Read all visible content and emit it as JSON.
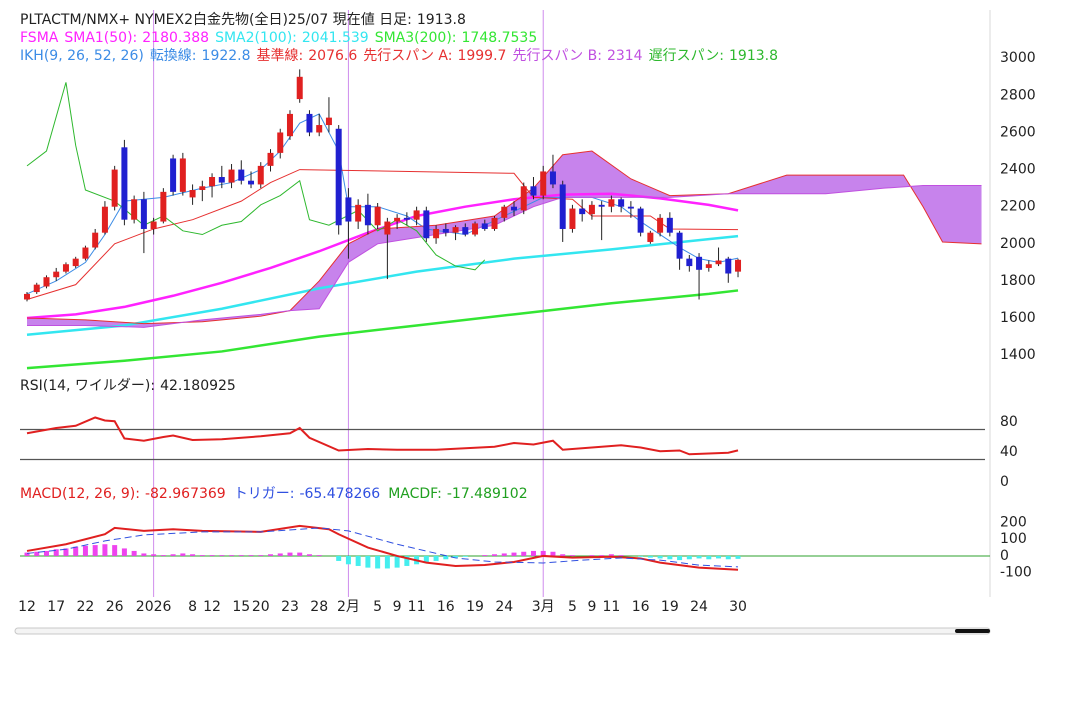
{
  "chart_data": {
    "type": "candlestick",
    "title": "PLTACTM/NMX+ NYMEX2白金先物(全日)25/07 現在値 日足:",
    "categories": [
      "12",
      null,
      null,
      "17",
      null,
      null,
      "22",
      null,
      null,
      "26",
      null,
      null,
      null,
      "2026",
      null,
      null,
      null,
      "8",
      null,
      "12",
      null,
      null,
      "15",
      null,
      "20",
      null,
      null,
      "23",
      null,
      null,
      "28",
      null,
      null,
      "2月",
      null,
      null,
      "5",
      null,
      "9",
      null,
      "11",
      null,
      null,
      "16",
      null,
      null,
      "19",
      null,
      null,
      "24",
      null,
      null,
      null,
      "3月",
      null,
      null,
      "5",
      null,
      "9",
      null,
      "11",
      null,
      null,
      "16",
      null,
      null,
      "19",
      null,
      null,
      "24",
      null,
      null,
      null,
      "30",
      null,
      null,
      null,
      null,
      null,
      null,
      null,
      null,
      null,
      null,
      null,
      null,
      null,
      null,
      null,
      null,
      null,
      null,
      null,
      null,
      null,
      null,
      null,
      null,
      null
    ],
    "period_starts": [
      13,
      33,
      53
    ],
    "period_color": "#b040e0",
    "ylim": [
      1320,
      3260
    ],
    "yticks": [
      1400,
      1600,
      1800,
      2000,
      2200,
      2400,
      2600,
      2800,
      3000
    ],
    "up_color": "#e02020",
    "down_color": "#2020d0",
    "candles": {
      "open": [
        1700,
        1740,
        1770,
        1820,
        1850,
        1880,
        1920,
        1980,
        2060,
        2200,
        2520,
        2130,
        2240,
        2080,
        2120,
        2460,
        2280,
        2250,
        2290,
        2310,
        2360,
        2330,
        2400,
        2340,
        2320,
        2420,
        2490,
        2580,
        2780,
        2700,
        2600,
        2640,
        2620,
        2250,
        2120,
        2210,
        2100,
        2050,
        2120,
        2140,
        2130,
        2180,
        2030,
        2080,
        2060,
        2090,
        2050,
        2110,
        2080,
        2140,
        2200,
        2180,
        2310,
        2260,
        2390,
        2320,
        2080,
        2190,
        2160,
        2210,
        2200,
        2240,
        2200,
        2190,
        2010,
        2060,
        2140,
        2060,
        1920,
        1930,
        1870,
        1890,
        1920,
        1850
      ],
      "high": [
        1740,
        1790,
        1830,
        1870,
        1900,
        1930,
        1990,
        2080,
        2230,
        2420,
        2560,
        2260,
        2280,
        2140,
        2300,
        2480,
        2490,
        2320,
        2340,
        2380,
        2420,
        2430,
        2450,
        2390,
        2440,
        2510,
        2620,
        2720,
        2940,
        2720,
        2700,
        2790,
        2640,
        2300,
        2240,
        2270,
        2220,
        2140,
        2160,
        2170,
        2200,
        2200,
        2100,
        2110,
        2100,
        2110,
        2120,
        2130,
        2150,
        2210,
        2230,
        2330,
        2360,
        2420,
        2480,
        2340,
        2210,
        2240,
        2230,
        2230,
        2260,
        2250,
        2230,
        2200,
        2070,
        2160,
        2170,
        2070,
        1940,
        1950,
        1910,
        1980,
        1930,
        1920
      ],
      "low": [
        1690,
        1730,
        1760,
        1800,
        1840,
        1870,
        1910,
        1970,
        2050,
        2180,
        2100,
        2110,
        1950,
        2050,
        2110,
        2260,
        2260,
        2210,
        2230,
        2250,
        2300,
        2300,
        2320,
        2300,
        2300,
        2390,
        2460,
        2560,
        2760,
        2580,
        2580,
        2600,
        2050,
        1920,
        2080,
        2050,
        2080,
        1810,
        2080,
        2100,
        2100,
        2010,
        2000,
        2040,
        2020,
        2040,
        2040,
        2070,
        2070,
        2120,
        2150,
        2160,
        2240,
        2240,
        2300,
        2010,
        2060,
        2120,
        2130,
        2020,
        2170,
        2170,
        2140,
        2040,
        2000,
        2040,
        2040,
        1860,
        1850,
        1700,
        1850,
        1880,
        1790,
        1820
      ],
      "close": [
        1730,
        1780,
        1820,
        1850,
        1890,
        1920,
        1980,
        2060,
        2200,
        2400,
        2130,
        2240,
        2080,
        2120,
        2280,
        2280,
        2460,
        2290,
        2310,
        2360,
        2330,
        2400,
        2340,
        2320,
        2420,
        2490,
        2600,
        2700,
        2900,
        2600,
        2640,
        2680,
        2100,
        2120,
        2210,
        2100,
        2200,
        2120,
        2140,
        2130,
        2180,
        2030,
        2080,
        2060,
        2090,
        2050,
        2110,
        2080,
        2140,
        2200,
        2180,
        2310,
        2260,
        2390,
        2320,
        2080,
        2190,
        2160,
        2210,
        2200,
        2240,
        2200,
        2190,
        2060,
        2060,
        2140,
        2060,
        1920,
        1880,
        1860,
        1890,
        1910,
        1840,
        1913.8
      ]
    },
    "overlays": [
      {
        "label": "FSMA",
        "color": "#ff22ff",
        "series": [
          {
            "name": "SMA1(50):",
            "color": "#ff22ff",
            "width": 2.5,
            "x": [
              0,
              5,
              10,
              15,
              20,
              25,
              30,
              35,
              40,
              45,
              50,
              55,
              60,
              65,
              70,
              73
            ],
            "values": [
              1600,
              1620,
              1660,
              1720,
              1790,
              1870,
              1960,
              2060,
              2150,
              2200,
              2240,
              2265,
              2270,
              2245,
              2210,
              2180.388
            ]
          },
          {
            "name": "SMA2(100):",
            "color": "#33e6f0",
            "width": 2.5,
            "x": [
              0,
              10,
              20,
              30,
              40,
              50,
              60,
              70,
              73
            ],
            "values": [
              1510,
              1560,
              1650,
              1760,
              1850,
              1920,
              1970,
              2025,
              2041.539
            ]
          },
          {
            "name": "SMA3(200):",
            "color": "#33e633",
            "width": 2.5,
            "x": [
              0,
              10,
              20,
              30,
              40,
              50,
              60,
              70,
              73
            ],
            "values": [
              1330,
              1370,
              1420,
              1500,
              1560,
              1620,
              1680,
              1730,
              1748.7535
            ]
          }
        ]
      },
      {
        "label": "IKH(9, 26, 52, 26)",
        "color": "#3c8ce6",
        "cloud": {
          "fill": "#b45ae6",
          "opacity": 0.75
        },
        "series": [
          {
            "name": "転換線:",
            "color": "#3c8ce6",
            "width": 1,
            "x": [
              0,
              3,
              6,
              8,
              10,
              14,
              18,
              21,
              24,
              26,
              28,
              30,
              32,
              33,
              36,
              39,
              41,
              45,
              49,
              51,
              53,
              58,
              61,
              63,
              65,
              67,
              69,
              71,
              73
            ],
            "values": [
              1730,
              1800,
              1900,
              2050,
              2230,
              2250,
              2300,
              2330,
              2400,
              2500,
              2650,
              2700,
              2500,
              2200,
              2200,
              2150,
              2080,
              2050,
              2150,
              2200,
              2250,
              2250,
              2200,
              2120,
              2050,
              1980,
              1920,
              1900,
              1922.8
            ]
          },
          {
            "name": "基準線:",
            "color": "#e63030",
            "width": 1,
            "x": [
              0,
              5,
              9,
              13,
              17,
              22,
              25,
              28,
              50,
              52,
              56,
              58,
              64,
              66,
              73
            ],
            "values": [
              1700,
              1780,
              2000,
              2080,
              2130,
              2230,
              2330,
              2400,
              2380,
              2250,
              2240,
              2150,
              2150,
              2080,
              2076.6
            ]
          },
          {
            "name": "先行スパン A:",
            "color": "#e63030",
            "width": 1,
            "cloud_edge": true,
            "x": [
              0,
              6,
              12,
              18,
              24,
              27,
              30,
              33,
              36,
              42,
              48,
              52,
              55,
              58,
              62,
              66,
              72,
              78,
              90,
              92,
              94,
              98
            ],
            "values": [
              1600,
              1590,
              1570,
              1580,
              1610,
              1640,
              1800,
              2000,
              2080,
              2100,
              2150,
              2300,
              2480,
              2500,
              2350,
              2260,
              2270,
              2370,
              2370,
              2200,
              2010,
              1999.7
            ]
          },
          {
            "name": "先行スパン B:",
            "color": "#c050e0",
            "width": 1,
            "cloud_edge": true,
            "x": [
              0,
              6,
              12,
              18,
              24,
              27,
              30,
              33,
              36,
              42,
              48,
              52,
              55,
              58,
              62,
              66,
              72,
              78,
              82,
              88,
              92,
              98
            ],
            "values": [
              1560,
              1560,
              1550,
              1590,
              1620,
              1640,
              1650,
              1900,
              2000,
              2050,
              2100,
              2200,
              2250,
              2250,
              2250,
              2250,
              2270,
              2270,
              2270,
              2300,
              2314,
              2314
            ]
          },
          {
            "name": "遅行スパン:",
            "color": "#2eb82e",
            "width": 1,
            "x": [
              0,
              2,
              4,
              5,
              6,
              9,
              12,
              14,
              16,
              18,
              20,
              22,
              24,
              26,
              28,
              29,
              31,
              34,
              36,
              38,
              40,
              42,
              44,
              46,
              47
            ],
            "values": [
              2420,
              2500,
              2870,
              2530,
              2290,
              2230,
              2100,
              2150,
              2070,
              2050,
              2100,
              2120,
              2210,
              2260,
              2340,
              2130,
              2100,
              2180,
              2070,
              2130,
              2070,
              1940,
              1880,
              1860,
              1913.8
            ]
          }
        ]
      }
    ],
    "panels": [
      {
        "type": "line",
        "ylim": [
          0,
          136
        ],
        "yticks": [
          0,
          40,
          80
        ],
        "levels": [
          70,
          30
        ],
        "level_color": "#555",
        "series": [
          {
            "name": "RSI(14, ワイルダー):",
            "color": "#e02020",
            "label_color": "#222",
            "width": 2,
            "x": [
              0,
              3,
              5,
              7,
              8,
              9,
              10,
              12,
              14,
              15,
              17,
              20,
              24,
              27,
              28,
              29,
              32,
              35,
              38,
              42,
              45,
              48,
              50,
              52,
              54,
              55,
              58,
              61,
              63,
              65,
              67,
              68,
              70,
              72,
              73
            ],
            "values": [
              65,
              72,
              75,
              86,
              82,
              81,
              58,
              55,
              60,
              62,
              56,
              57,
              61,
              65,
              72,
              59,
              42,
              44,
              43,
              43,
              45,
              47,
              52,
              50,
              55,
              43,
              46,
              49,
              46,
              41,
              42,
              37,
              38,
              39,
              42.180925
            ]
          }
        ]
      },
      {
        "type": "macd",
        "ylim": [
          -234,
          407
        ],
        "yticks": [
          -100,
          0,
          100,
          200
        ],
        "zero_line_color": "#2ca02c",
        "series": [
          {
            "name": "MACD(12, 26, 9):",
            "color": "#e02020",
            "width": 2,
            "x": [
              0,
              4,
              8,
              9,
              12,
              15,
              18,
              24,
              28,
              31,
              32,
              35,
              38,
              41,
              44,
              47,
              50,
              53,
              56,
              60,
              63,
              65,
              69,
              73
            ],
            "values": [
              30,
              70,
              130,
              168,
              150,
              160,
              150,
              144,
              180,
              160,
              130,
              50,
              0,
              -40,
              -60,
              -54,
              -36,
              0,
              -10,
              -5,
              -15,
              -40,
              -70,
              -82.967369
            ]
          },
          {
            "name": "トリガー:",
            "color": "#3050e0",
            "width": 1,
            "dash": true,
            "x": [
              0,
              4,
              8,
              12,
              18,
              24,
              30,
              33,
              38,
              44,
              48,
              53,
              57,
              61,
              65,
              69,
              73
            ],
            "values": [
              15,
              40,
              90,
              126,
              144,
              144,
              168,
              150,
              70,
              -12,
              -36,
              -42,
              -25,
              -12,
              -25,
              -55,
              -65.478266
            ]
          }
        ],
        "histogram": {
          "name": "MACDF:",
          "color": "#20a020",
          "positive_color": "#ee44ee",
          "negative_color": "#44eeee",
          "values": [
            20,
            25,
            30,
            40,
            45,
            55,
            60,
            65,
            70,
            65,
            45,
            30,
            15,
            10,
            5,
            10,
            15,
            10,
            5,
            5,
            5,
            5,
            5,
            5,
            5,
            10,
            15,
            20,
            20,
            10,
            5,
            0,
            -30,
            -50,
            -60,
            -70,
            -75,
            -75,
            -70,
            -60,
            -50,
            -40,
            -30,
            -20,
            -10,
            -5,
            0,
            5,
            10,
            15,
            20,
            25,
            30,
            30,
            25,
            10,
            5,
            0,
            5,
            5,
            10,
            5,
            0,
            -5,
            -10,
            -15,
            -20,
            -25,
            -20,
            -15,
            -20,
            -15,
            -20,
            -17.489102
          ]
        }
      }
    ]
  }
}
